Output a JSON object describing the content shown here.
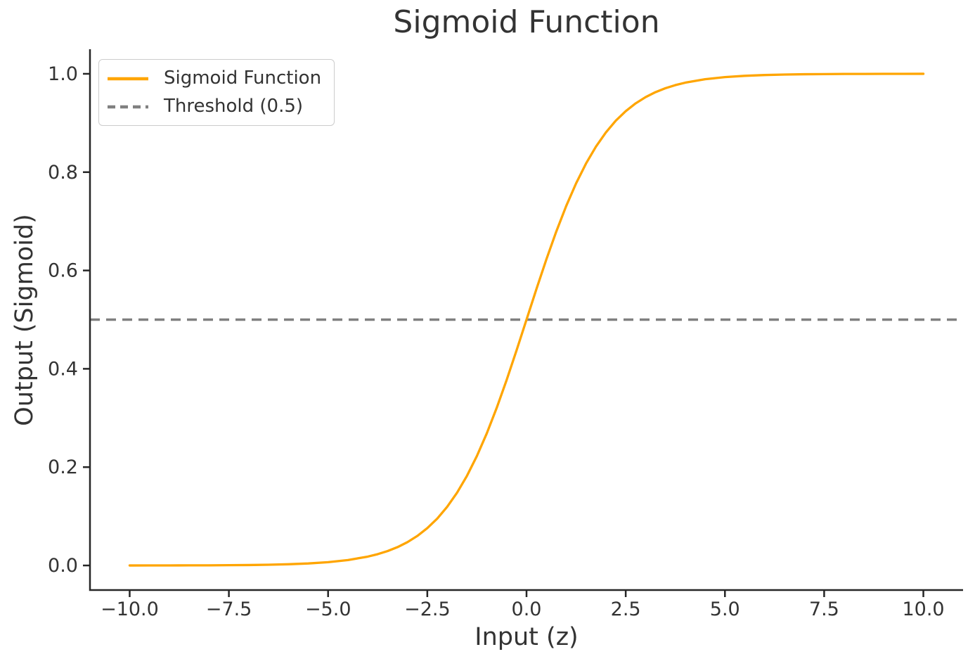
{
  "chart_data": {
    "type": "line",
    "title": "Sigmoid Function",
    "xlabel": "Input (z)",
    "ylabel": "Output (Sigmoid)",
    "xlim": [
      -11,
      11
    ],
    "ylim": [
      -0.05,
      1.05
    ],
    "grid": false,
    "spines": {
      "top": false,
      "right": false,
      "left": true,
      "bottom": true
    },
    "x_ticks": {
      "values": [
        -10,
        -7.5,
        -5,
        -2.5,
        0,
        2.5,
        5,
        7.5,
        10
      ],
      "labels": [
        "−10.0",
        "−7.5",
        "−5.0",
        "−2.5",
        "0.0",
        "2.5",
        "5.0",
        "7.5",
        "10.0"
      ]
    },
    "y_ticks": {
      "values": [
        0,
        0.2,
        0.4,
        0.6,
        0.8,
        1.0
      ],
      "labels": [
        "0.0",
        "0.2",
        "0.4",
        "0.6",
        "0.8",
        "1.0"
      ]
    },
    "legend": {
      "position": "upper-left",
      "entries": [
        {
          "label": "Sigmoid Function",
          "color": "#FFA500",
          "style": "solid"
        },
        {
          "label": "Threshold (0.5)",
          "color": "#808080",
          "style": "dashed"
        }
      ]
    },
    "series": [
      {
        "name": "Sigmoid Function",
        "kind": "curve",
        "color": "#FFA500",
        "style": "solid",
        "x": [
          -10,
          -9.5,
          -9,
          -8.5,
          -8,
          -7.5,
          -7,
          -6.5,
          -6,
          -5.5,
          -5,
          -4.5,
          -4,
          -3.75,
          -3.5,
          -3.25,
          -3,
          -2.75,
          -2.5,
          -2.25,
          -2,
          -1.75,
          -1.5,
          -1.25,
          -1,
          -0.75,
          -0.5,
          -0.25,
          0,
          0.25,
          0.5,
          0.75,
          1,
          1.25,
          1.5,
          1.75,
          2,
          2.25,
          2.5,
          2.75,
          3,
          3.25,
          3.5,
          3.75,
          4,
          4.5,
          5,
          5.5,
          6,
          6.5,
          7,
          7.5,
          8,
          8.5,
          9,
          9.5,
          10
        ],
        "y": [
          0.0,
          0.0001,
          0.0001,
          0.0002,
          0.0003,
          0.0006,
          0.0009,
          0.0015,
          0.0025,
          0.0041,
          0.0067,
          0.011,
          0.018,
          0.023,
          0.0293,
          0.0373,
          0.0474,
          0.0601,
          0.0759,
          0.0953,
          0.1192,
          0.148,
          0.1824,
          0.2227,
          0.2689,
          0.3208,
          0.3775,
          0.4378,
          0.5,
          0.5622,
          0.6225,
          0.6792,
          0.7311,
          0.7773,
          0.8176,
          0.852,
          0.8808,
          0.9047,
          0.9241,
          0.9399,
          0.9526,
          0.9627,
          0.9707,
          0.977,
          0.982,
          0.989,
          0.9933,
          0.9959,
          0.9975,
          0.9985,
          0.9991,
          0.9994,
          0.9997,
          0.9998,
          0.9999,
          0.9999,
          1.0
        ]
      },
      {
        "name": "Threshold (0.5)",
        "kind": "hline",
        "color": "#808080",
        "style": "dashed",
        "y": 0.5,
        "x_start": -11,
        "x_end": 11
      }
    ],
    "colors": {
      "sigmoid_line": "#FFA500",
      "threshold_line": "#808080",
      "text": "#333333",
      "spine": "#262626",
      "legend_border": "#cccccc",
      "background": "#ffffff"
    }
  }
}
